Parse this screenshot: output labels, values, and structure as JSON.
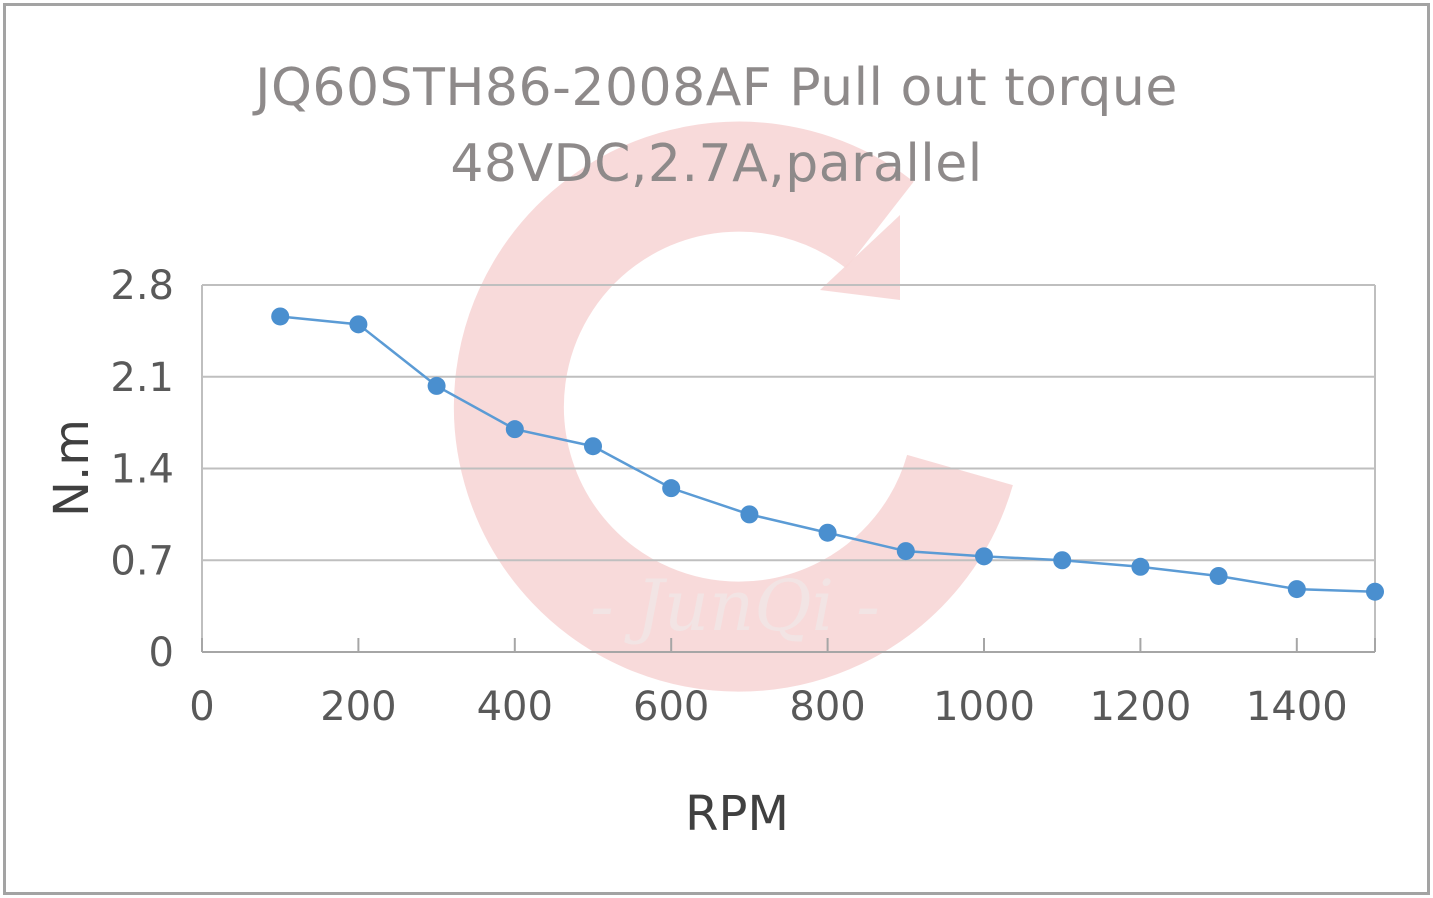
{
  "chart_data": {
    "type": "line",
    "title": "JQ60STH86-2008AF Pull out torque",
    "subtitle": "48VDC,2.7A,parallel",
    "xlabel": "RPM",
    "ylabel": "N.m",
    "xlim": [
      0,
      1500
    ],
    "ylim": [
      0,
      2.8
    ],
    "xticks": [
      "0",
      "200",
      "400",
      "600",
      "800",
      "1000",
      "1200",
      "1400"
    ],
    "yticks": [
      "0",
      "0.7",
      "1.4",
      "2.1",
      "2.8"
    ],
    "grid": "horizontal",
    "series": [
      {
        "x": [
          100,
          200,
          300,
          400,
          500,
          600,
          700,
          800,
          900,
          1000,
          1100,
          1200,
          1300,
          1400,
          1500
        ],
        "y": [
          2.56,
          2.5,
          2.03,
          1.7,
          1.57,
          1.25,
          1.05,
          0.91,
          0.77,
          0.73,
          0.7,
          0.65,
          0.58,
          0.48,
          0.46
        ]
      }
    ],
    "colors": {
      "line": "#5b9bd5",
      "marker": "#4a8fcf",
      "grid": "#bfbfbf",
      "axis": "#a6a6a6",
      "text": "#595959"
    }
  },
  "watermark": {
    "text": "- JunQi -",
    "color": "#f4c9c9"
  }
}
